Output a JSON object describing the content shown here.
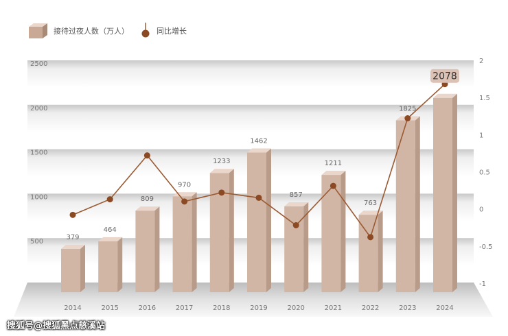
{
  "chart_data": {
    "type": "bar",
    "categories": [
      "2014",
      "2015",
      "2016",
      "2017",
      "2018",
      "2019",
      "2020",
      "2021",
      "2022",
      "2023",
      "2024"
    ],
    "series": [
      {
        "name": "接待过夜人数（万人）",
        "type": "bar",
        "axis": "left",
        "values": [
          379,
          464,
          809,
          970,
          1233,
          1462,
          857,
          1211,
          763,
          1825,
          2078
        ],
        "labels": [
          "379",
          "464",
          "809",
          "970",
          "1233",
          "1462",
          "857",
          "1211",
          "763",
          "1825",
          "2078"
        ]
      },
      {
        "name": "同比增长",
        "type": "line",
        "axis": "right",
        "values": [
          -0.08,
          0.13,
          0.72,
          0.1,
          0.22,
          0.15,
          -0.22,
          0.31,
          -0.38,
          1.22,
          1.68
        ]
      }
    ],
    "left_axis": {
      "ticks": [
        "500",
        "1000",
        "1500",
        "2000",
        "2500"
      ],
      "range": [
        0,
        2500
      ]
    },
    "right_axis": {
      "ticks": [
        "2",
        "1.5",
        "1",
        "0.5",
        "0",
        "-0.5",
        "-1"
      ],
      "range": [
        -1,
        2
      ]
    },
    "colors": {
      "bar_front": "#d2b6a5",
      "bar_side": "#b99b89",
      "bar_top": "#ead6ca",
      "line": "#9a5a33",
      "marker": "#8c4a24",
      "highlight_box": "#dcc2b4"
    }
  },
  "watermark": "搜狐号@搜狐黑点慈溪站"
}
